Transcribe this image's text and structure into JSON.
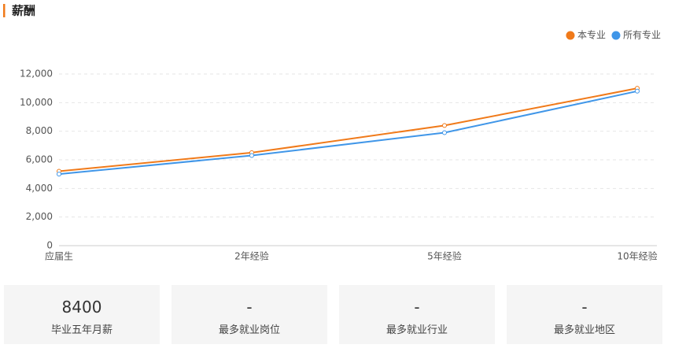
{
  "header": {
    "title": "薪酬"
  },
  "chart_data": {
    "type": "line",
    "categories": [
      "应届生",
      "2年经验",
      "5年经验",
      "10年经验"
    ],
    "series": [
      {
        "name": "本专业",
        "color": "#f07a1a",
        "values": [
          5200,
          6500,
          8400,
          11000
        ]
      },
      {
        "name": "所有专业",
        "color": "#4096e8",
        "values": [
          5000,
          6300,
          7900,
          10800
        ]
      }
    ],
    "ylim": [
      0,
      12000
    ],
    "yticks": [
      0,
      {
        "value": 2000,
        "label": "2,000"
      },
      {
        "value": 4000,
        "label": "4,000"
      },
      {
        "value": 6000,
        "label": "6,000"
      },
      {
        "value": 8000,
        "label": "8,000"
      },
      {
        "value": 10000,
        "label": "10,000"
      },
      {
        "value": 12000,
        "label": "12,000"
      }
    ],
    "grid": true,
    "legend": "top-right"
  },
  "stats": [
    {
      "value": 8400,
      "label": "毕业五年月薪"
    },
    {
      "value": "-",
      "label": "最多就业岗位"
    },
    {
      "value": "-",
      "label": "最多就业行业"
    },
    {
      "value": "-",
      "label": "最多就业地区"
    }
  ]
}
